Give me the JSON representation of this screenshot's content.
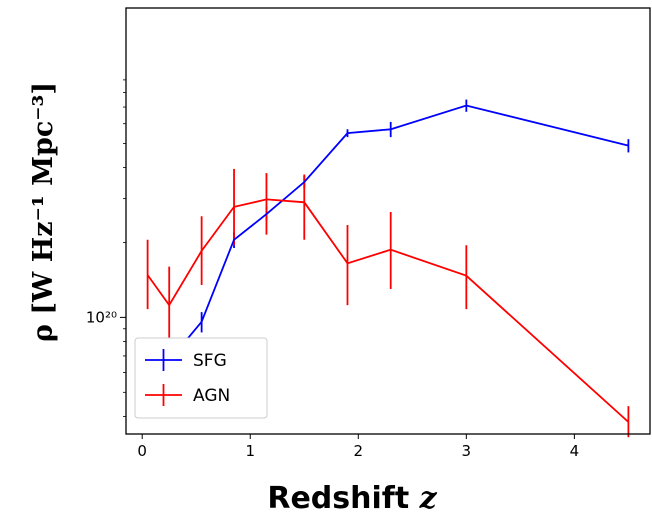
{
  "chart_data": {
    "type": "line",
    "xlabel_main": "Redshift",
    "xlabel_var": "z",
    "ylabel": "ρ [W Hz⁻¹ Mpc⁻³]",
    "y_scale": "log",
    "xlim": [
      -0.15,
      4.7
    ],
    "ylim": [
      3.4e+19,
      1.75e+21
    ],
    "x_ticks": [
      0,
      1,
      2,
      3,
      4
    ],
    "y_tick_label": "10²⁰",
    "y_tick_value": 1e+20,
    "legend_position": "lower-left",
    "series": [
      {
        "name": "SFG",
        "color": "#0000ff",
        "x": [
          0.05,
          0.25,
          0.55,
          0.85,
          1.15,
          1.5,
          1.9,
          2.3,
          3.0,
          4.5
        ],
        "y": [
          6.4e+19,
          6.7e+19,
          9.6e+19,
          2.05e+20,
          2.6e+20,
          3.5e+20,
          5.5e+20,
          5.7e+20,
          7.1e+20,
          4.9e+20
        ],
        "yerr_low": [
          6e+19,
          6.1e+19,
          8.7e+19,
          1.9e+20,
          2.45e+20,
          3.3e+20,
          5.3e+20,
          5.3e+20,
          6.7e+20,
          4.6e+20
        ],
        "yerr_high": [
          6.9e+19,
          7.4e+19,
          1.05e+20,
          2.2e+20,
          2.8e+20,
          3.7e+20,
          5.7e+20,
          6.1e+20,
          7.5e+20,
          5.2e+20
        ]
      },
      {
        "name": "AGN",
        "color": "#ff0000",
        "x": [
          0.05,
          0.25,
          0.55,
          0.85,
          1.15,
          1.5,
          1.9,
          2.3,
          3.0,
          4.5
        ],
        "y": [
          1.48e+20,
          1.12e+20,
          1.85e+20,
          2.78e+20,
          2.98e+20,
          2.9e+20,
          1.65e+20,
          1.87e+20,
          1.47e+20,
          3.8e+19
        ],
        "yerr_low": [
          1.08e+20,
          7.8e+19,
          1.35e+20,
          1.95e+20,
          2.15e+20,
          2.05e+20,
          1.12e+20,
          1.3e+20,
          1.08e+20,
          3.3e+19
        ],
        "yerr_high": [
          2.05e+20,
          1.6e+20,
          2.55e+20,
          3.95e+20,
          3.8e+20,
          3.75e+20,
          2.35e+20,
          2.65e+20,
          1.95e+20,
          4.4e+19
        ]
      }
    ]
  }
}
